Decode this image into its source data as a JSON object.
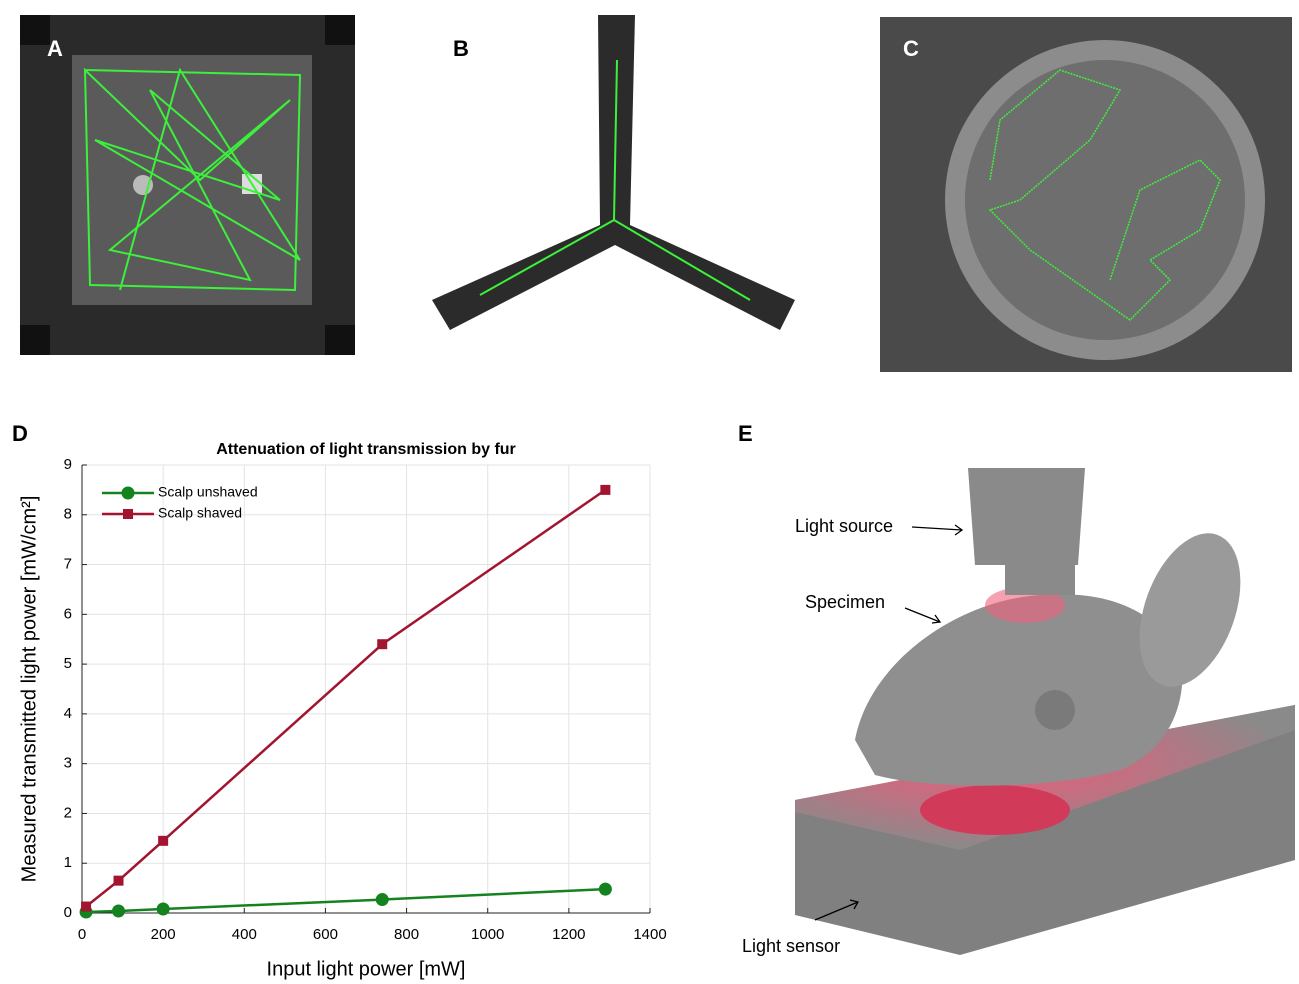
{
  "panel_labels": [
    "A",
    "B",
    "C",
    "D",
    "E"
  ],
  "diagram": {
    "labels": [
      "Light source",
      "Specimen",
      "Light sensor"
    ]
  },
  "chart_data": {
    "type": "line",
    "title": "Attenuation of light transmission by fur",
    "x_label": "Input light power [mW]",
    "y_label": "Measured transmitted light power [mW/cm²]",
    "xlim": [
      0,
      1400
    ],
    "xticks": [
      0,
      200,
      400,
      600,
      800,
      1000,
      1200,
      1400
    ],
    "ylim": [
      0,
      9
    ],
    "yticks": [
      0,
      1,
      2,
      3,
      4,
      5,
      6,
      7,
      8,
      9
    ],
    "grid": true,
    "legend": "upper-left",
    "series": [
      {
        "name": "Scalp unshaved",
        "color": "#14831f",
        "marker": "circle",
        "x": [
          10,
          90,
          200,
          740,
          1290
        ],
        "values": [
          0.02,
          0.04,
          0.08,
          0.27,
          0.48
        ]
      },
      {
        "name": "Scalp shaved",
        "color": "#a2142f",
        "marker": "square",
        "x": [
          10,
          90,
          200,
          740,
          1290
        ],
        "values": [
          0.13,
          0.65,
          1.45,
          5.4,
          8.5
        ]
      }
    ]
  }
}
